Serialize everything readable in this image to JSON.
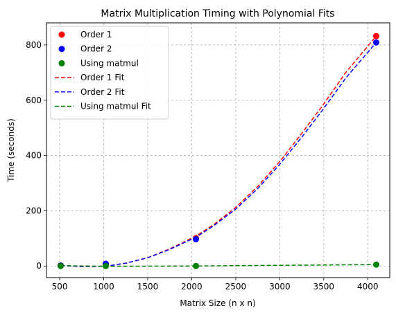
{
  "chart_data": {
    "type": "scatter",
    "title": "Matrix Multiplication Timing with Polynomial Fits",
    "xlabel": "Matrix Size (n x n)",
    "ylabel": "Time (seconds)",
    "xlim": [
      350,
      4250
    ],
    "ylim": [
      -42,
      880
    ],
    "xticks": [
      500,
      1000,
      1500,
      2000,
      2500,
      3000,
      3500,
      4000
    ],
    "yticks": [
      0,
      200,
      400,
      600,
      800
    ],
    "grid": true,
    "legend_position": "top-left",
    "series": [
      {
        "name": "Order 1",
        "kind": "scatter",
        "color": "#ff0000",
        "x": [
          512,
          1024,
          2048,
          4096
        ],
        "y": [
          2,
          8,
          101,
          832
        ]
      },
      {
        "name": "Order 2",
        "kind": "scatter",
        "color": "#0000ff",
        "x": [
          512,
          1024,
          2048,
          4096
        ],
        "y": [
          2,
          8,
          97,
          809
        ]
      },
      {
        "name": "Using matmul",
        "kind": "scatter",
        "color": "#008000",
        "x": [
          512,
          1024,
          2048,
          4096
        ],
        "y": [
          0,
          0,
          0,
          5
        ]
      },
      {
        "name": "Order 1 Fit",
        "kind": "fit",
        "color": "#ff0000",
        "x": [
          512,
          750,
          1024,
          1250,
          1500,
          1750,
          2048,
          2250,
          2500,
          2750,
          3000,
          3250,
          3500,
          3750,
          4096
        ],
        "y": [
          2,
          -2,
          -1,
          10,
          30,
          62,
          108,
          150,
          212,
          288,
          378,
          480,
          586,
          700,
          832
        ]
      },
      {
        "name": "Order 2 Fit",
        "kind": "fit",
        "color": "#0000ff",
        "x": [
          512,
          750,
          1024,
          1250,
          1500,
          1750,
          2048,
          2250,
          2500,
          2750,
          3000,
          3250,
          3500,
          3750,
          4096
        ],
        "y": [
          2,
          -2,
          -1,
          10,
          30,
          60,
          104,
          146,
          206,
          280,
          368,
          466,
          570,
          680,
          809
        ]
      },
      {
        "name": "Using matmul Fit",
        "kind": "fit",
        "color": "#008000",
        "x": [
          512,
          1024,
          2048,
          3000,
          4096
        ],
        "y": [
          1,
          -1,
          0,
          2.5,
          5
        ]
      }
    ]
  }
}
